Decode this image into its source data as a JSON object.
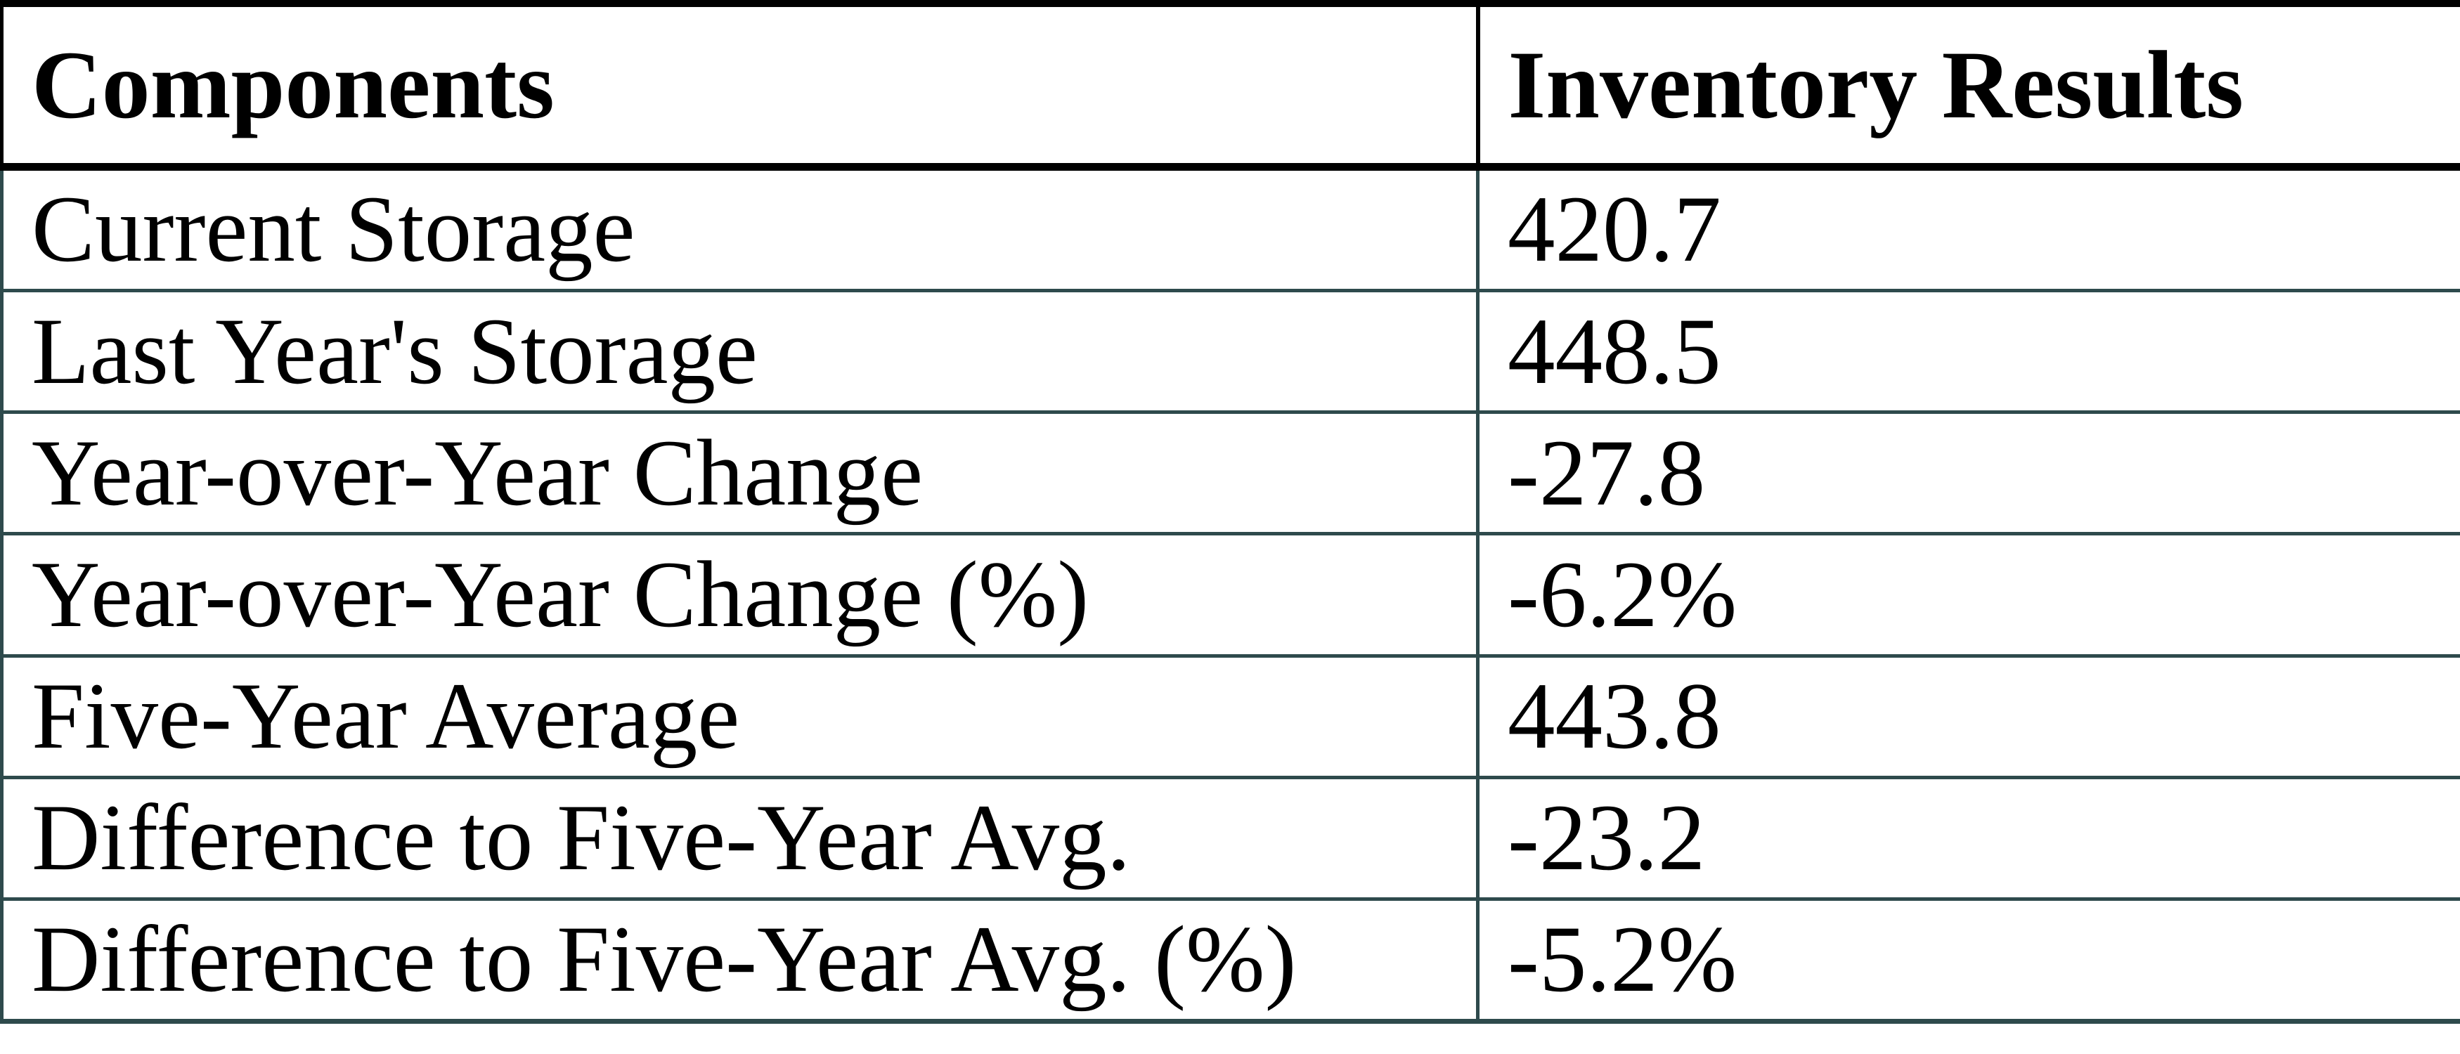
{
  "chart_data": {
    "type": "table",
    "columns": [
      "Components",
      "Inventory Results"
    ],
    "rows": [
      [
        "Current Storage",
        "420.7"
      ],
      [
        "Last Year's Storage",
        "448.5"
      ],
      [
        "Year-over-Year Change",
        "-27.8"
      ],
      [
        "Year-over-Year Change (%)",
        "-6.2%"
      ],
      [
        "Five-Year Average",
        "443.8"
      ],
      [
        "Difference to Five-Year Avg.",
        "-23.2"
      ],
      [
        "Difference to Five-Year Avg. (%)",
        "-5.2%"
      ]
    ],
    "layout": {
      "header_position": "top",
      "grid": "on",
      "column_split_x_ratio": 0.6
    },
    "colors": {
      "header_border": "#000000",
      "body_border": "#2E4A4C",
      "text": "#000000",
      "background": "#FFFFFF"
    }
  }
}
